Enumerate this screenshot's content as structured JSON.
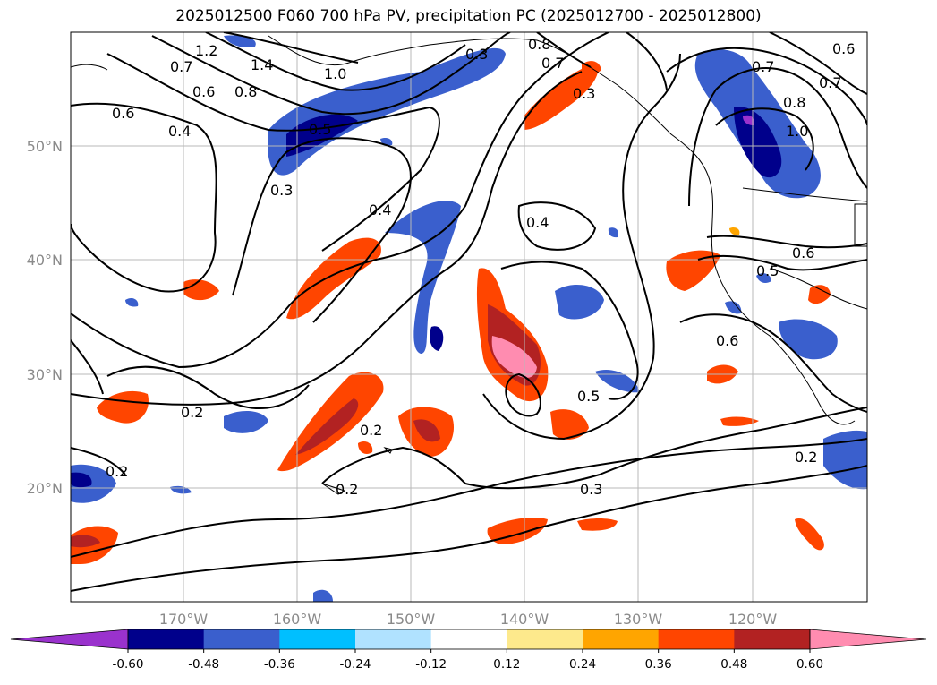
{
  "chart_data": {
    "type": "contour-map",
    "title": "2025012500 F060 700 hPa PV, precipitation PC (2025012700 - 2025012800)",
    "lat_ticks": [
      "20°N",
      "30°N",
      "40°N",
      "50°N"
    ],
    "lon_ticks": [
      "170°W",
      "160°W",
      "150°W",
      "140°W",
      "130°W",
      "120°W"
    ],
    "lat_range": [
      10,
      60
    ],
    "lon_range": [
      -180,
      -110
    ],
    "grid": true,
    "colorbar": {
      "ticks": [
        "-0.60",
        "-0.48",
        "-0.36",
        "-0.24",
        "-0.12",
        "0.12",
        "0.24",
        "0.36",
        "0.48",
        "0.60"
      ],
      "colors": [
        "#9a32cd",
        "#00008b",
        "#3a5fcd",
        "#00bfff",
        "#b0e2ff",
        "#ffffff",
        "#fde98c",
        "#ffa500",
        "#ff4500",
        "#b22222",
        "#ff8cb0"
      ],
      "extend": "both"
    },
    "contour_labels": [
      "1.2",
      "1.4",
      "0.7",
      "0.6",
      "0.8",
      "1.0",
      "0.6",
      "0.4",
      "0.5",
      "0.3",
      "0.4",
      "0.4",
      "0.2",
      "0.2",
      "0.2",
      "0.2",
      "0.3",
      "0.5",
      "0.6",
      "0.5",
      "0.6",
      "0.3",
      "0.2",
      "0.8",
      "0.7",
      "0.3",
      "0.7",
      "0.8",
      "0.7",
      "0.6",
      "1.0"
    ]
  }
}
